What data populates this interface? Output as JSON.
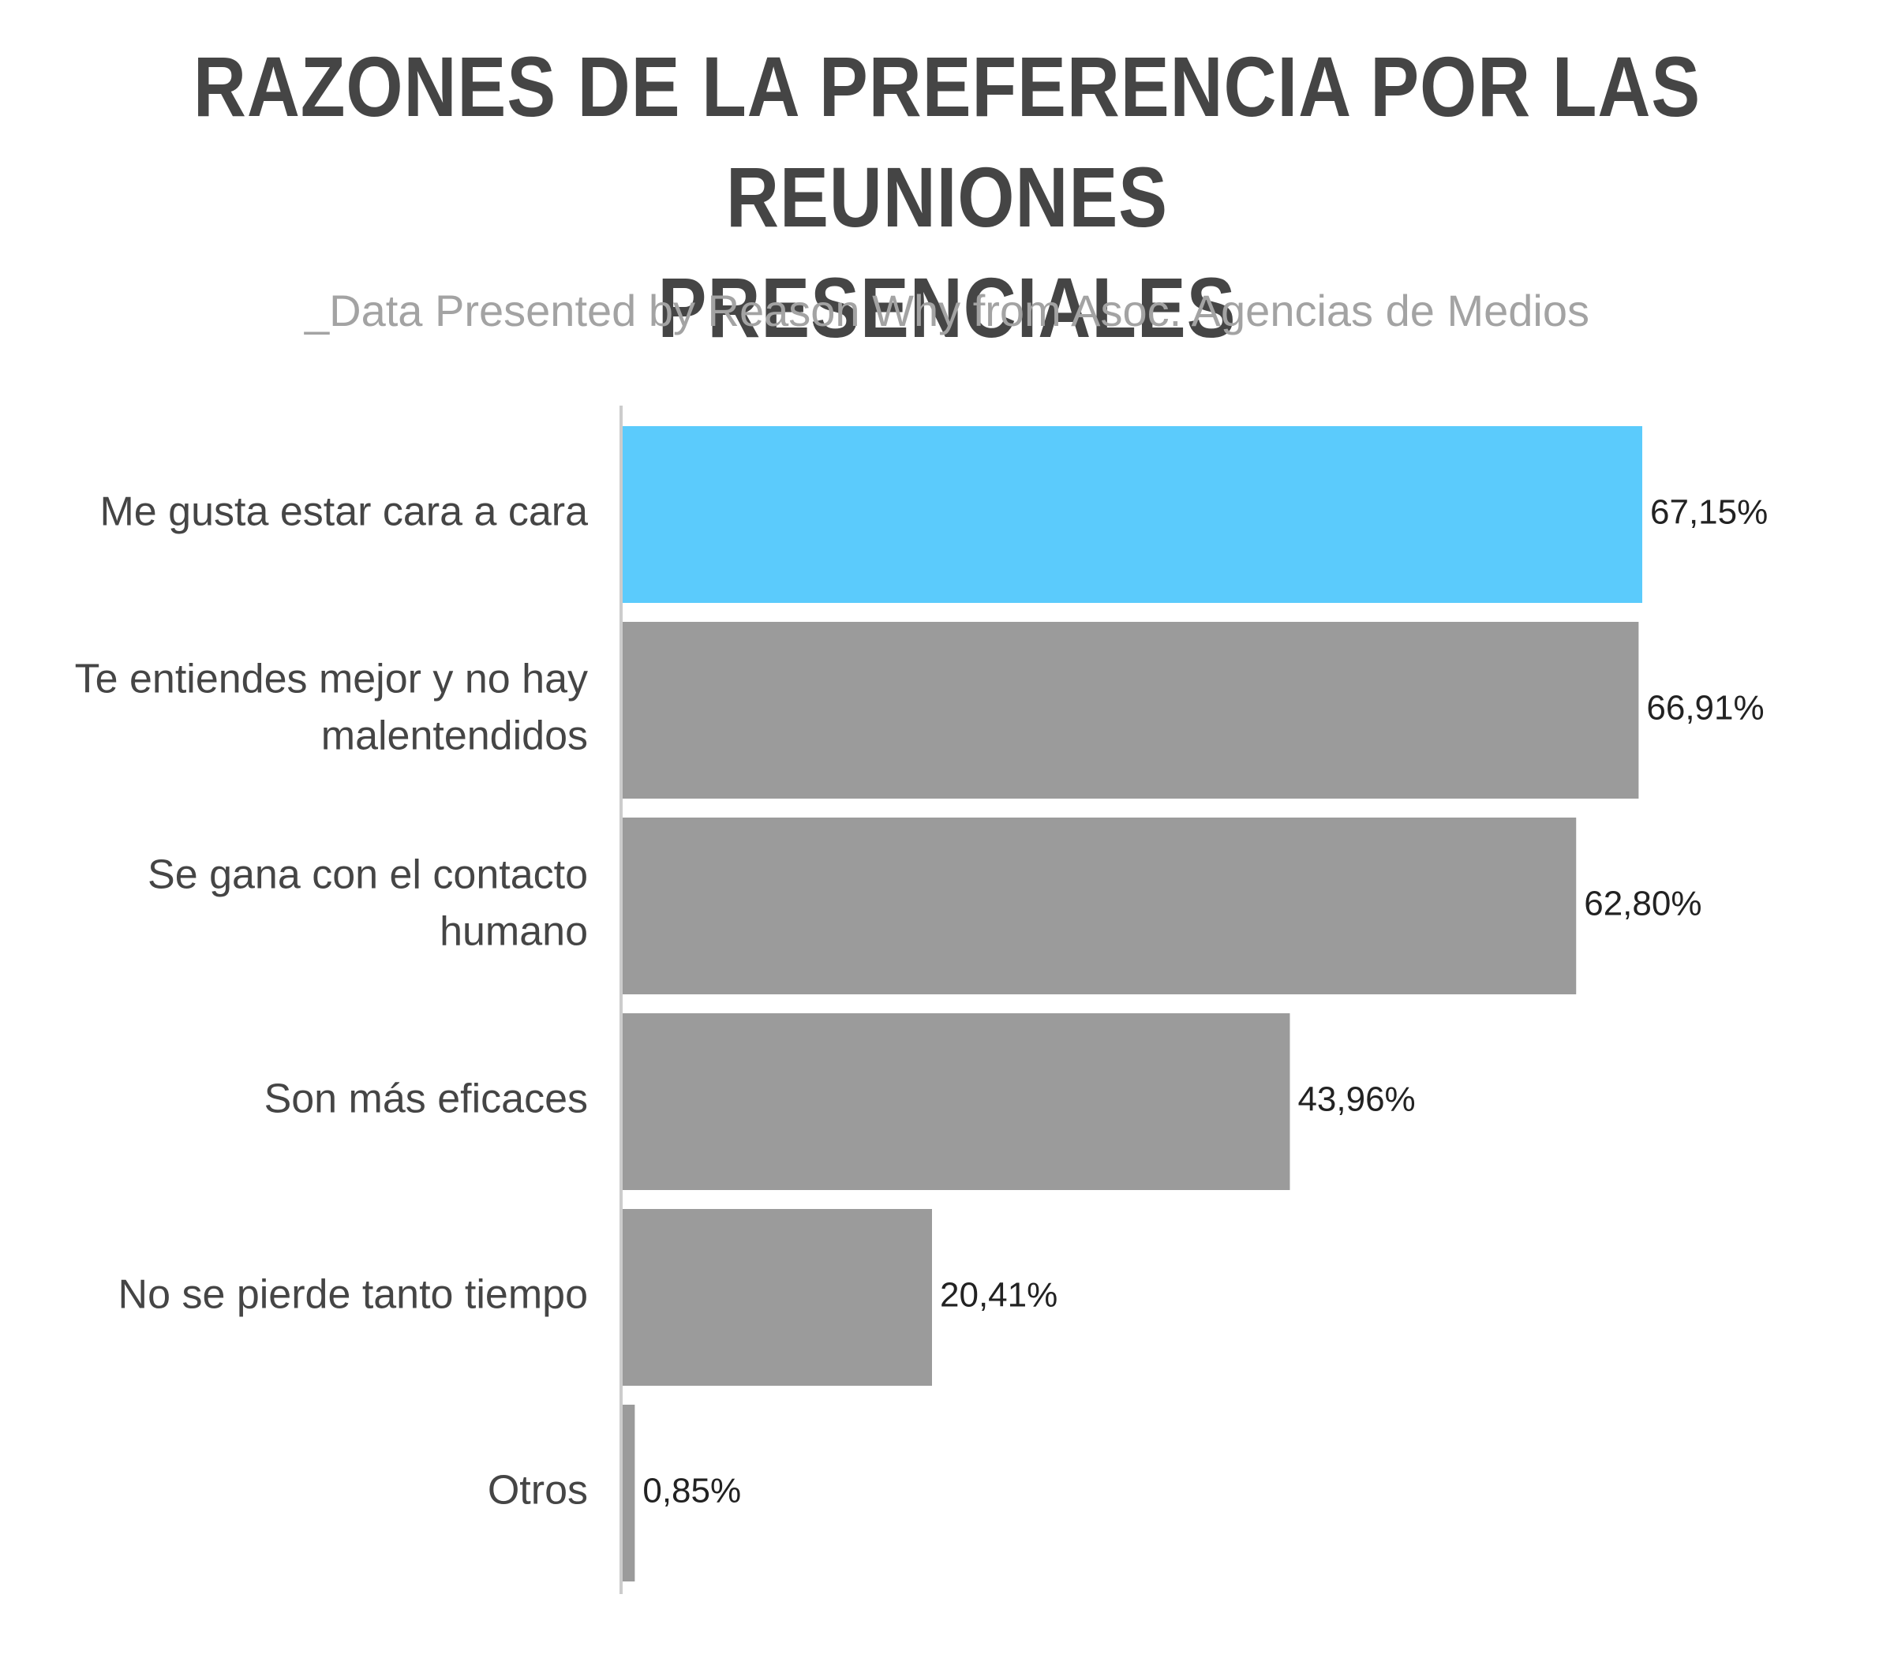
{
  "title_lines": [
    "RAZONES DE LA PREFERENCIA POR LAS REUNIONES",
    "PRESENCIALES"
  ],
  "subtitle": "_Data Presented by Reason Why from Asoc. Agencias de Medios",
  "chart_data": {
    "type": "bar",
    "orientation": "horizontal",
    "title": "RAZONES DE LA PREFERENCIA POR LAS REUNIONES PRESENCIALES",
    "subtitle": "_Data Presented by Reason Why from Asoc. Agencias de Medios",
    "categories": [
      [
        "Me gusta estar cara a cara"
      ],
      [
        "Te entiendes mejor y no hay",
        "malentendidos"
      ],
      [
        "Se gana con el contacto",
        "humano"
      ],
      [
        "Son más eficaces"
      ],
      [
        "No se pierde tanto tiempo"
      ],
      [
        "Otros"
      ]
    ],
    "values": [
      67.15,
      66.91,
      62.8,
      43.96,
      20.41,
      0.85
    ],
    "value_labels": [
      "67,15%",
      "66,91%",
      "62,80%",
      "43,96%",
      "20,41%",
      "0,85%"
    ],
    "highlight_index": 0,
    "xlim": [
      0,
      67.15
    ],
    "grid": false,
    "legend": "none",
    "colors": {
      "highlight": "#5BCBFC",
      "bar": "#9B9B9B",
      "axis": "#CCCCCC",
      "title": "#454545",
      "subtitle": "#A3A3A3"
    }
  }
}
